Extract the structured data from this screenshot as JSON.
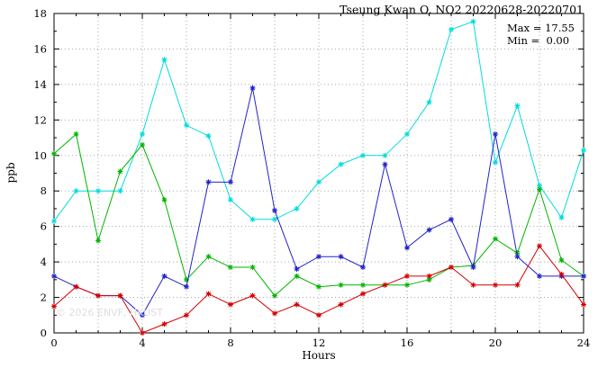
{
  "watermark": "© 2026 ENVF, HKUST",
  "chart_data": {
    "type": "line",
    "title": "Tseung Kwan O, NO2 20220628-20220701",
    "xlabel": "Hours",
    "ylabel": "ppb",
    "xlim": [
      0,
      24
    ],
    "ylim": [
      0,
      18
    ],
    "xticks": [
      0,
      4,
      8,
      12,
      16,
      20,
      24
    ],
    "yticks": [
      0,
      2,
      4,
      6,
      8,
      10,
      12,
      14,
      16,
      18
    ],
    "grid": {
      "step_x": 2,
      "step_y": 2,
      "style": "dotted",
      "color": "#a8a8a8"
    },
    "legend": "none",
    "annotations": {
      "max_label": "Max = 17.55",
      "min_label": "Min =  0.00"
    },
    "marker": "asterisk",
    "x": [
      0,
      1,
      2,
      3,
      4,
      5,
      6,
      7,
      8,
      9,
      10,
      11,
      12,
      13,
      14,
      15,
      16,
      17,
      18,
      19,
      20,
      21,
      22,
      23,
      24
    ],
    "series": [
      {
        "name": "series-cyan",
        "color": "#00dcdc",
        "values": [
          6.3,
          8.0,
          8.0,
          8.0,
          11.2,
          15.4,
          11.7,
          11.1,
          7.5,
          6.4,
          6.4,
          7.0,
          8.5,
          9.5,
          10.0,
          10.0,
          11.2,
          13.0,
          17.1,
          17.55,
          9.6,
          12.8,
          8.3,
          6.5,
          10.3
        ]
      },
      {
        "name": "series-green",
        "color": "#00b400",
        "values": [
          10.1,
          11.2,
          5.2,
          9.1,
          10.6,
          7.5,
          3.0,
          4.3,
          3.7,
          3.7,
          2.1,
          3.2,
          2.6,
          2.7,
          2.7,
          2.7,
          2.7,
          3.0,
          3.7,
          3.8,
          5.3,
          4.5,
          8.1,
          4.1,
          3.2
        ]
      },
      {
        "name": "series-blue",
        "color": "#2222c8",
        "values": [
          3.2,
          2.6,
          2.1,
          2.1,
          1.0,
          3.2,
          2.6,
          8.5,
          8.5,
          13.8,
          6.9,
          3.6,
          4.3,
          4.3,
          3.7,
          9.5,
          4.8,
          5.8,
          6.4,
          3.7,
          11.2,
          4.3,
          3.2,
          3.2,
          3.2
        ]
      },
      {
        "name": "series-red",
        "color": "#d40000",
        "values": [
          1.5,
          2.6,
          2.1,
          2.1,
          0.0,
          0.5,
          1.0,
          2.2,
          1.6,
          2.1,
          1.1,
          1.6,
          1.0,
          1.6,
          2.2,
          2.7,
          3.2,
          3.2,
          3.7,
          2.7,
          2.7,
          2.7,
          4.9,
          3.3,
          1.6
        ]
      }
    ]
  }
}
